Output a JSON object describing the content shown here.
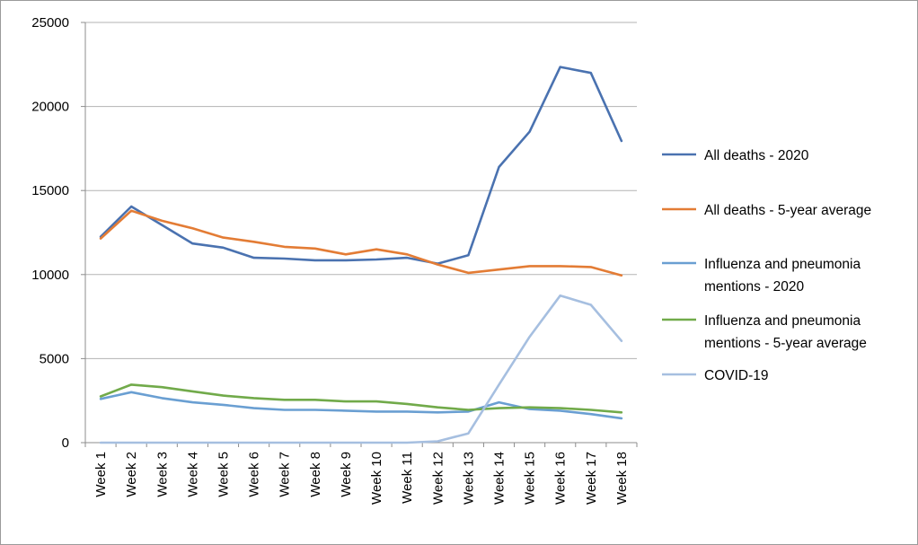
{
  "chart_data": {
    "type": "line",
    "title": "",
    "xlabel": "",
    "ylabel": "",
    "ylim": [
      0,
      25000
    ],
    "yticks": [
      "0",
      "5000",
      "10000",
      "15000",
      "20000",
      "25000"
    ],
    "grid": "horizontal",
    "legend_position": "right",
    "categories": [
      "Week 1",
      "Week 2",
      "Week 3",
      "Week 4",
      "Week 5",
      "Week 6",
      "Week 7",
      "Week 8",
      "Week 9",
      "Week 10",
      "Week 11",
      "Week 12",
      "Week 13",
      "Week 14",
      "Week 15",
      "Week 16",
      "Week 17",
      "Week 18"
    ],
    "series": [
      {
        "name": "All deaths - 2020",
        "name_lines": [
          "All deaths - 2020"
        ],
        "color": "#4a72b0",
        "values": [
          12250,
          14050,
          12950,
          11850,
          11600,
          11000,
          10950,
          10850,
          10850,
          10900,
          11000,
          10650,
          11150,
          16400,
          18500,
          22350,
          22000,
          17950
        ]
      },
      {
        "name": "All deaths - 5-year average",
        "name_lines": [
          "All deaths - 5-year average"
        ],
        "color": "#e37c35",
        "values": [
          12150,
          13800,
          13200,
          12750,
          12200,
          11950,
          11650,
          11550,
          11200,
          11500,
          11200,
          10600,
          10100,
          10300,
          10500,
          10500,
          10450,
          9950
        ]
      },
      {
        "name": "Influenza and pneumonia mentions - 2020",
        "name_lines": [
          "Influenza and pneumonia",
          "mentions - 2020"
        ],
        "color": "#6a9fd2",
        "values": [
          2600,
          3000,
          2650,
          2400,
          2250,
          2050,
          1950,
          1950,
          1900,
          1850,
          1850,
          1800,
          1850,
          2400,
          2000,
          1900,
          1700,
          1450
        ]
      },
      {
        "name": "Influenza and pneumonia mentions - 5-year average",
        "name_lines": [
          "Influenza and pneumonia",
          "mentions - 5-year average"
        ],
        "color": "#71aa4a",
        "values": [
          2750,
          3450,
          3300,
          3050,
          2800,
          2650,
          2550,
          2550,
          2450,
          2450,
          2300,
          2100,
          1950,
          2050,
          2100,
          2050,
          1950,
          1800
        ]
      },
      {
        "name": "COVID-19",
        "name_lines": [
          "COVID-19"
        ],
        "color": "#a6bfe0",
        "values": [
          0,
          0,
          0,
          0,
          0,
          0,
          0,
          0,
          0,
          0,
          0,
          80,
          550,
          3450,
          6300,
          8750,
          8200,
          6050
        ]
      }
    ]
  }
}
